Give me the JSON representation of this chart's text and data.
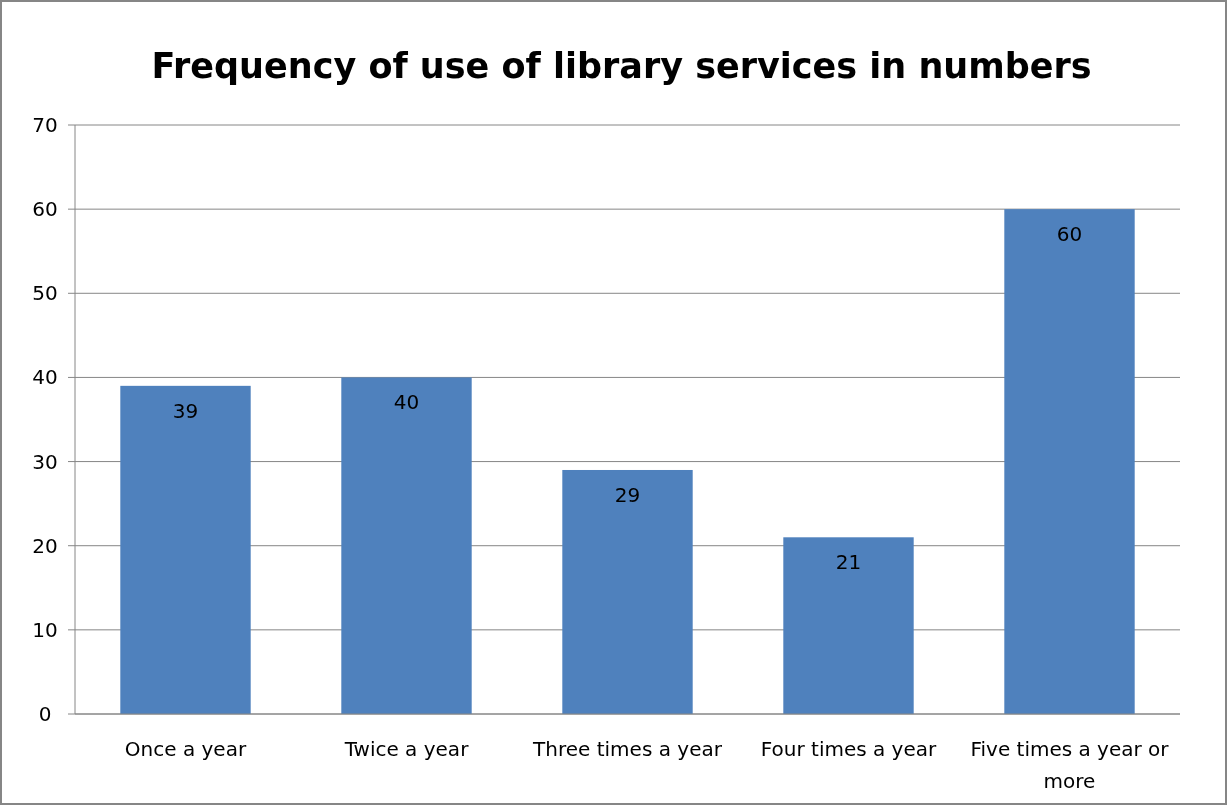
{
  "chart_data": {
    "type": "bar",
    "title": "Frequency of use of library services in numbers",
    "categories": [
      "Once a year",
      "Twice a year",
      "Three times a year",
      "Four times a year",
      "Five times a year or more"
    ],
    "values": [
      39,
      40,
      29,
      21,
      60
    ],
    "color": "#4f81bd",
    "ylim": [
      0,
      70
    ],
    "yticks": [
      0,
      10,
      20,
      30,
      40,
      50,
      60,
      70
    ],
    "grid": "y",
    "data_labels": true
  }
}
